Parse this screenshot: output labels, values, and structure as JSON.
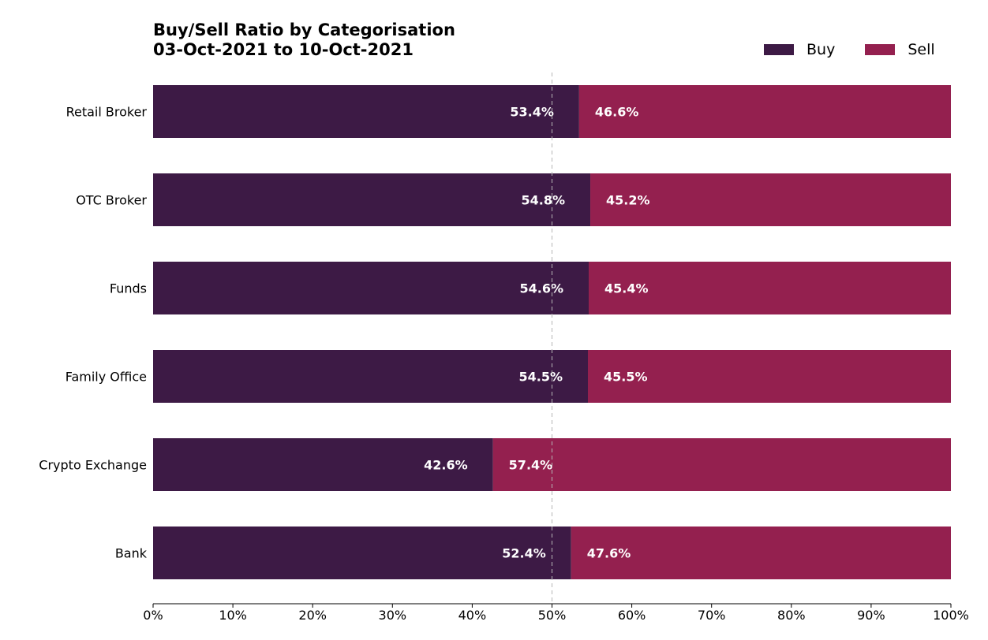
{
  "chart_data": {
    "type": "bar",
    "orientation": "horizontal",
    "stacked": true,
    "title": "Buy/Sell Ratio by Categorisation",
    "subtitle": "03-Oct-2021 to 10-Oct-2021",
    "categories": [
      "Retail Broker",
      "OTC Broker",
      "Funds",
      "Family Office",
      "Crypto Exchange",
      "Bank"
    ],
    "series": [
      {
        "name": "Buy",
        "color": "#3d1a45",
        "values": [
          53.4,
          54.8,
          54.6,
          54.5,
          42.6,
          52.4
        ],
        "labels": [
          "53.4%",
          "54.8%",
          "54.6%",
          "54.5%",
          "42.6%",
          "52.4%"
        ]
      },
      {
        "name": "Sell",
        "color": "#94204f",
        "values": [
          46.6,
          45.2,
          45.4,
          45.5,
          57.4,
          47.6
        ],
        "labels": [
          "46.6%",
          "45.2%",
          "45.4%",
          "45.5%",
          "57.4%",
          "47.6%"
        ]
      }
    ],
    "xlim": [
      0,
      100
    ],
    "xticks": [
      "0%",
      "10%",
      "20%",
      "30%",
      "40%",
      "50%",
      "60%",
      "70%",
      "80%",
      "90%",
      "100%"
    ],
    "reference_line": 50,
    "legend_position": "top-right",
    "xlabel": "",
    "ylabel": ""
  }
}
